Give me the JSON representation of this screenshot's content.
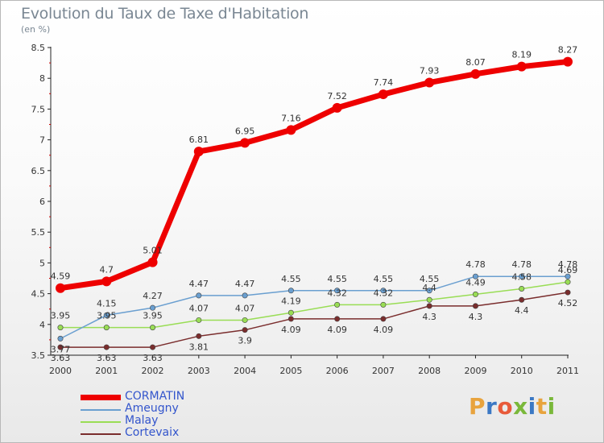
{
  "page": {
    "title": "Evolution du Taux de Taxe d'Habitation",
    "unit": "(en %)",
    "logo": "Proxiti",
    "logo_colors": [
      "#e8a33d",
      "#3b78c4",
      "#e85a3a",
      "#7ab83a",
      "#3b78c4",
      "#e8a33d",
      "#7ab83a"
    ]
  },
  "chart_data": {
    "type": "line",
    "title": "Evolution du Taux de Taxe d'Habitation",
    "ylabel": "(en %)",
    "xlabel": "",
    "x": [
      "2000",
      "2001",
      "2002",
      "2003",
      "2004",
      "2005",
      "2006",
      "2007",
      "2008",
      "2009",
      "2010",
      "2011"
    ],
    "ylim": [
      3.5,
      8.5
    ],
    "yticks": [
      "3.5",
      "4",
      "4.5",
      "5",
      "5.5",
      "6",
      "6.5",
      "7",
      "7.5",
      "8",
      "8.5"
    ],
    "grid": false,
    "legend_position": "bottom-left",
    "series": [
      {
        "name": "CORMATIN",
        "color": "#ee0000",
        "label_color": "#3355cc",
        "values": [
          4.59,
          4.7,
          5.01,
          6.81,
          6.95,
          7.16,
          7.52,
          7.74,
          7.93,
          8.07,
          8.19,
          8.27
        ],
        "labels": [
          "4.59",
          "4.7",
          "5.01",
          "6.81",
          "6.95",
          "7.16",
          "7.52",
          "7.74",
          "7.93",
          "8.07",
          "8.19",
          "8.27"
        ]
      },
      {
        "name": "Ameugny",
        "color": "#6a9fd0",
        "label_color": "#3355cc",
        "values": [
          3.77,
          4.15,
          4.27,
          4.47,
          4.47,
          4.55,
          4.55,
          4.55,
          4.55,
          4.78,
          4.78,
          4.78
        ],
        "labels": [
          "3.77",
          "4.15",
          "4.27",
          "4.47",
          "4.47",
          "4.55",
          "4.55",
          "4.55",
          "4.55",
          "4.78",
          "4.78",
          "4.78"
        ]
      },
      {
        "name": "Malay",
        "color": "#99dd55",
        "label_color": "#66bb33",
        "values": [
          3.95,
          3.95,
          3.95,
          4.07,
          4.07,
          4.19,
          4.32,
          4.32,
          4.4,
          4.49,
          4.58,
          4.69
        ],
        "labels": [
          "3.95",
          "3.95",
          "3.95",
          "4.07",
          "4.07",
          "4.19",
          "4.32",
          "4.32",
          "4.4",
          "4.49",
          "4.58",
          "4.69"
        ]
      },
      {
        "name": "Cortevaix",
        "color": "#7a2d2d",
        "label_color": "#7a2d2d",
        "values": [
          3.63,
          3.63,
          3.63,
          3.81,
          3.91,
          4.09,
          4.09,
          4.09,
          4.3,
          4.3,
          4.4,
          4.52
        ],
        "labels": [
          "3.63",
          "3.63",
          "3.63",
          "3.81",
          "3.9",
          "4.09",
          "4.09",
          "4.09",
          "4.3",
          "4.3",
          "4.4",
          "4.52"
        ]
      }
    ]
  }
}
